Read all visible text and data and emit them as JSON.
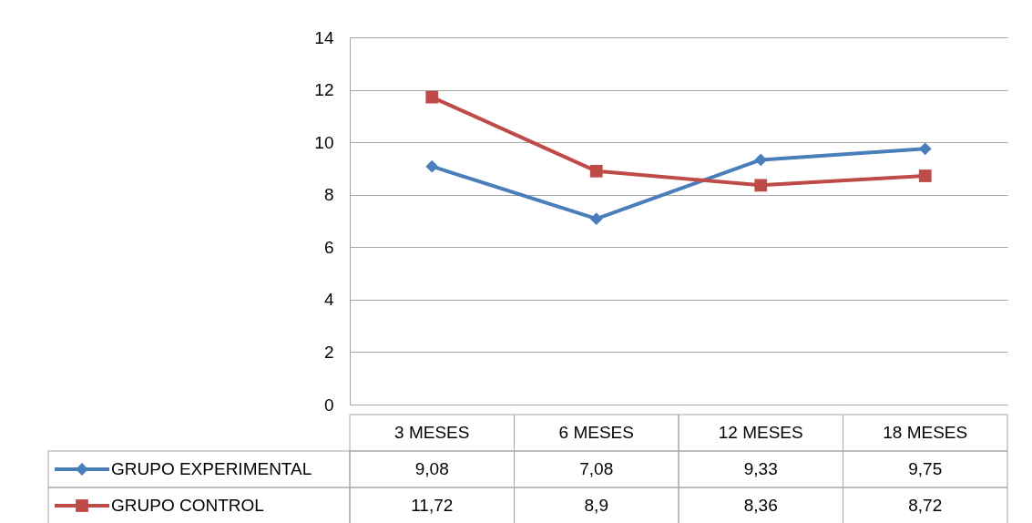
{
  "chart_data": {
    "type": "line",
    "categories": [
      "3 MESES",
      "6 MESES",
      "12 MESES",
      "18 MESES"
    ],
    "series": [
      {
        "name": "GRUPO EXPERIMENTAL",
        "color": "#4a7ebb",
        "marker": "diamond",
        "values": [
          9.08,
          7.08,
          9.33,
          9.75
        ],
        "value_labels": [
          "9,08",
          "7,08",
          "9,33",
          "9,75"
        ]
      },
      {
        "name": "GRUPO CONTROL",
        "color": "#be4b48",
        "marker": "square",
        "values": [
          11.72,
          8.9,
          8.36,
          8.72
        ],
        "value_labels": [
          "11,72",
          "8,9",
          "8,36",
          "8,72"
        ]
      }
    ],
    "ylim": [
      0,
      14
    ],
    "yticks": [
      0,
      2,
      4,
      6,
      8,
      10,
      12,
      14
    ],
    "grid": "y",
    "legend": "bottom left",
    "line_style": "solid"
  }
}
